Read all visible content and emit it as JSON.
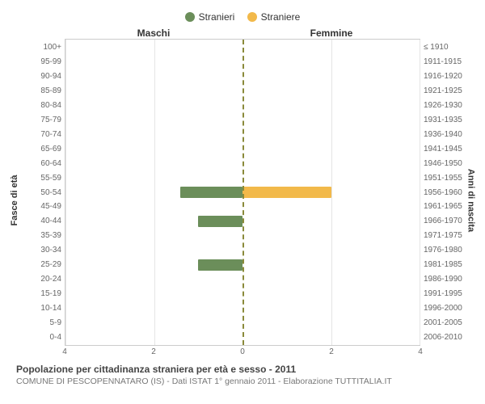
{
  "chart": {
    "type": "population-pyramid",
    "legend": [
      {
        "label": "Stranieri",
        "color": "#6b8e5a"
      },
      {
        "label": "Straniere",
        "color": "#f2b94a"
      }
    ],
    "column_titles": {
      "left": "Maschi",
      "right": "Femmine"
    },
    "y_left_title": "Fasce di età",
    "y_right_title": "Anni di nascita",
    "age_groups": [
      "100+",
      "95-99",
      "90-94",
      "85-89",
      "80-84",
      "75-79",
      "70-74",
      "65-69",
      "60-64",
      "55-59",
      "50-54",
      "45-49",
      "40-44",
      "35-39",
      "30-34",
      "25-29",
      "20-24",
      "15-19",
      "10-14",
      "5-9",
      "0-4"
    ],
    "birth_years": [
      "≤ 1910",
      "1911-1915",
      "1916-1920",
      "1921-1925",
      "1926-1930",
      "1931-1935",
      "1936-1940",
      "1941-1945",
      "1946-1950",
      "1951-1955",
      "1956-1960",
      "1961-1965",
      "1966-1970",
      "1971-1975",
      "1976-1980",
      "1981-1985",
      "1986-1990",
      "1991-1995",
      "1996-2000",
      "2001-2005",
      "2006-2010"
    ],
    "x_axis": {
      "max": 4,
      "ticks": [
        4,
        2,
        0,
        2,
        4
      ]
    },
    "bars": [
      {
        "age_index": 10,
        "male": 1.4,
        "female": 2.0
      },
      {
        "age_index": 12,
        "male": 1.0,
        "female": 0
      },
      {
        "age_index": 15,
        "male": 1.0,
        "female": 0
      }
    ],
    "colors": {
      "male_bar": "#6b8e5a",
      "female_bar": "#f2b94a",
      "grid": "#e5e5e5",
      "border": "#cccccc",
      "center_line": "#8a8a3a",
      "background": "#ffffff",
      "text": "#333333",
      "subtext": "#777777"
    },
    "title_fontsize": 12,
    "sub_fontsize": 10.5,
    "tick_fontsize": 10
  },
  "footer": {
    "title": "Popolazione per cittadinanza straniera per età e sesso - 2011",
    "subtitle": "COMUNE DI PESCOPENNATARO (IS) - Dati ISTAT 1° gennaio 2011 - Elaborazione TUTTITALIA.IT"
  }
}
